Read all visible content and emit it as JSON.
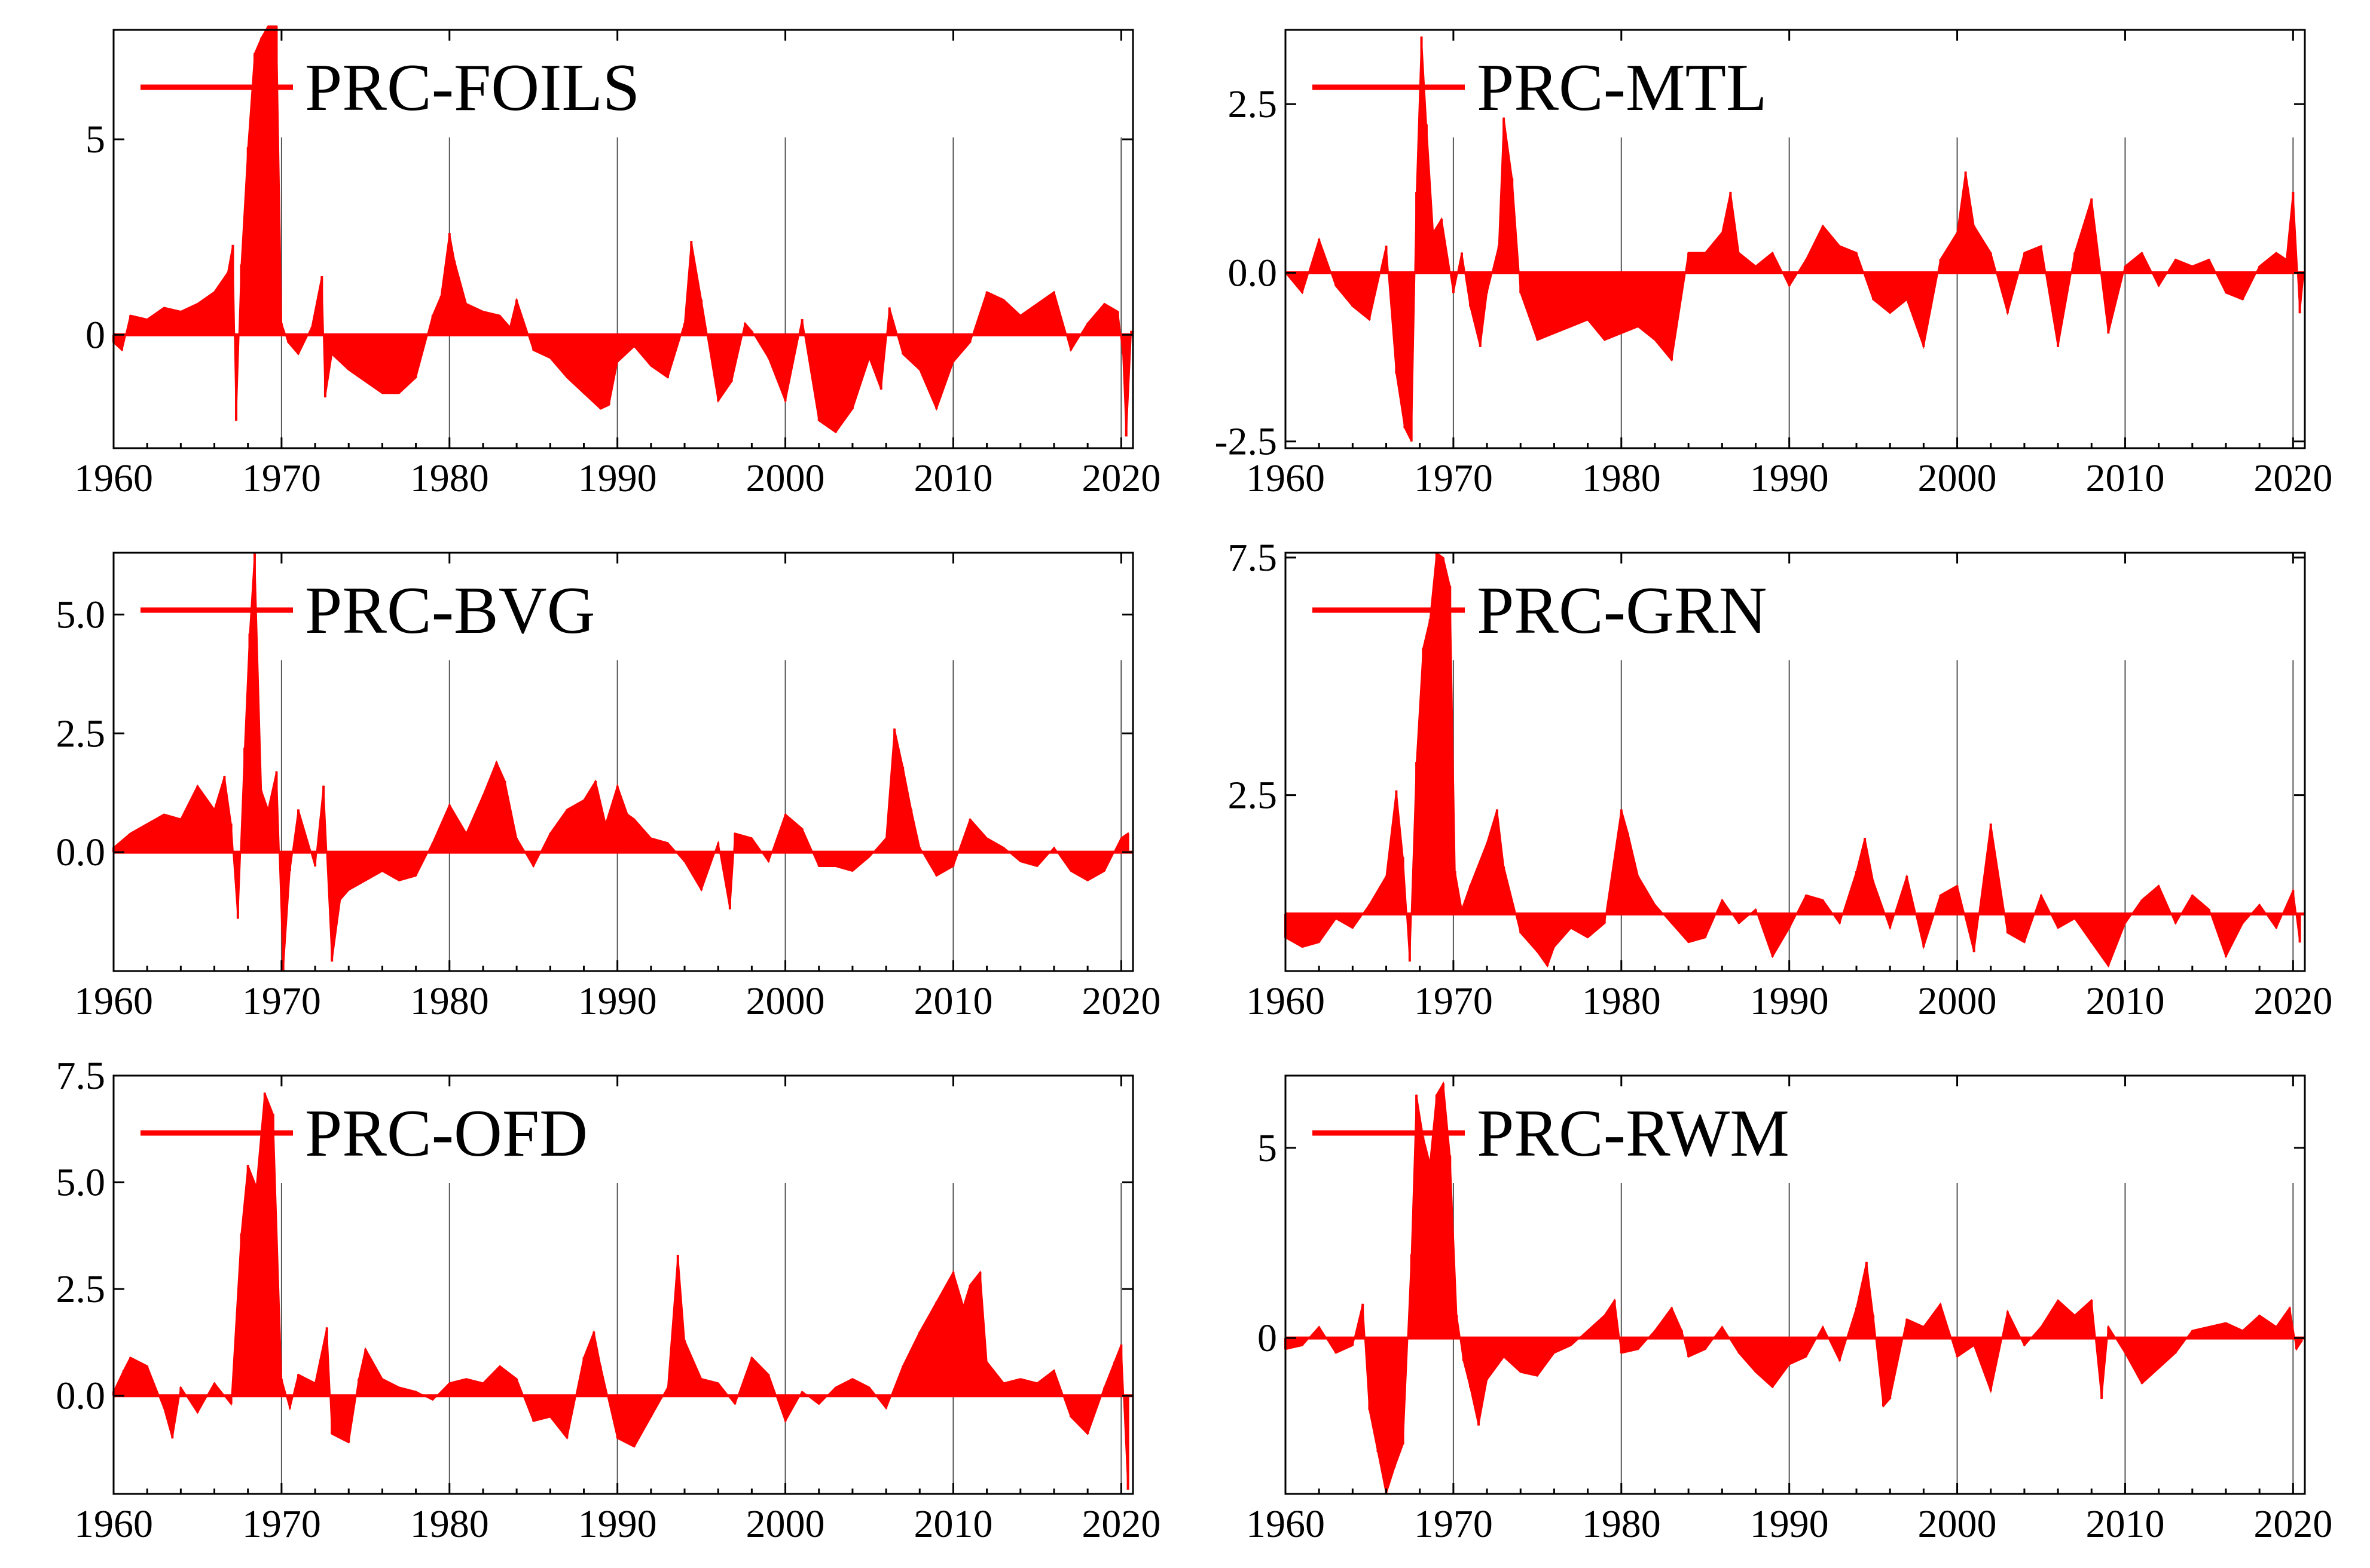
{
  "chart_data": [
    {
      "type": "area",
      "title": "PRC-FOILS",
      "legend": [
        "PRC-FOILS"
      ],
      "legend_position": "top-left",
      "xlim": [
        1960,
        2020.7
      ],
      "ylim": [
        -2.9,
        7.8
      ],
      "xticks": [
        1960,
        1970,
        1980,
        1990,
        2000,
        2010,
        2020
      ],
      "yticks": [
        {
          "v": 0,
          "label": "0"
        },
        {
          "v": 5,
          "label": "5"
        }
      ],
      "gridlines_x": [
        1970,
        1980,
        1990,
        2000,
        2010,
        2020
      ],
      "x": [
        1960,
        1960.5,
        1961,
        1962,
        1963,
        1964,
        1965,
        1966,
        1966.8,
        1967.1,
        1967.3,
        1967.6,
        1968,
        1968.4,
        1968.8,
        1969.2,
        1969.7,
        1970,
        1970.4,
        1971,
        1971.8,
        1972.4,
        1972.6,
        1973,
        1974,
        1975,
        1976,
        1977,
        1978,
        1979,
        1979.5,
        1980,
        1980.3,
        1981,
        1982,
        1983,
        1983.6,
        1984,
        1985,
        1986,
        1987,
        1988,
        1989,
        1989.5,
        1990,
        1991,
        1992,
        1993,
        1994,
        1994.4,
        1995,
        1996,
        1996.8,
        1997.6,
        1998,
        1999,
        2000,
        2001,
        2002,
        2003,
        2004,
        2005,
        2005.7,
        2006.2,
        2007,
        2008,
        2009,
        2010,
        2011,
        2012,
        2013,
        2014,
        2015,
        2016,
        2017,
        2018,
        2019,
        2019.8,
        2020.1,
        2020.3,
        2020.6
      ],
      "values": [
        -0.2,
        -0.4,
        0.5,
        0.4,
        0.7,
        0.6,
        0.8,
        1.1,
        1.6,
        2.3,
        -2.2,
        1.8,
        4.8,
        7.2,
        7.6,
        7.9,
        7.9,
        0.3,
        -0.2,
        -0.5,
        0.2,
        1.5,
        -1.6,
        -0.5,
        -0.9,
        -1.2,
        -1.5,
        -1.5,
        -1.1,
        0.5,
        1.0,
        2.6,
        1.9,
        0.8,
        0.6,
        0.5,
        0.2,
        0.9,
        -0.4,
        -0.6,
        -1.1,
        -1.5,
        -1.9,
        -1.8,
        -0.7,
        -0.3,
        -0.8,
        -1.1,
        0.3,
        2.4,
        0.9,
        -1.7,
        -1.2,
        0.3,
        0.1,
        -0.6,
        -1.7,
        0.4,
        -2.2,
        -2.5,
        -1.9,
        -0.6,
        -1.4,
        0.7,
        -0.5,
        -0.9,
        -1.9,
        -0.7,
        -0.2,
        1.1,
        0.9,
        0.5,
        0.8,
        1.1,
        -0.4,
        0.3,
        0.8,
        0.6,
        -0.5,
        -2.6,
        0.1
      ]
    },
    {
      "type": "area",
      "title": "PRC-MTL",
      "legend": [
        "PRC-MTL"
      ],
      "legend_position": "top-left",
      "xlim": [
        1960,
        2020.7
      ],
      "ylim": [
        -2.6,
        3.6
      ],
      "xticks": [
        1960,
        1970,
        1980,
        1990,
        2000,
        2010,
        2020
      ],
      "yticks": [
        {
          "v": 2.5,
          "label": "2.5"
        },
        {
          "v": 0,
          "label": "0.0"
        },
        {
          "v": -2.5,
          "label": "-2.5"
        }
      ],
      "gridlines_x": [
        1970,
        1980,
        1990,
        2000,
        2010,
        2020
      ],
      "x": [
        1960,
        1961,
        1962,
        1963,
        1964,
        1965,
        1966,
        1966.6,
        1967.1,
        1967.5,
        1967.8,
        1968.1,
        1968.4,
        1968.8,
        1969.3,
        1970,
        1970.5,
        1971,
        1971.6,
        1972,
        1972.7,
        1973,
        1973.5,
        1974,
        1975,
        1976,
        1977,
        1978,
        1979,
        1980,
        1981,
        1982,
        1983,
        1984,
        1985,
        1986,
        1986.5,
        1987,
        1988,
        1989,
        1990,
        1991,
        1992,
        1993,
        1994,
        1995,
        1996,
        1997,
        1998,
        1999,
        2000,
        2000.5,
        2001,
        2002,
        2003,
        2004,
        2005,
        2006,
        2007,
        2008,
        2009,
        2010,
        2011,
        2012,
        2013,
        2014,
        2015,
        2016,
        2017,
        2018,
        2019,
        2019.6,
        2020,
        2020.4,
        2020.6
      ],
      "values": [
        0.0,
        -0.3,
        0.5,
        -0.2,
        -0.5,
        -0.7,
        0.4,
        -1.5,
        -2.3,
        -2.5,
        1.2,
        3.5,
        2.2,
        0.6,
        0.8,
        -0.3,
        0.3,
        -0.5,
        -1.1,
        -0.3,
        0.4,
        2.3,
        1.4,
        -0.3,
        -1.0,
        -0.9,
        -0.8,
        -0.7,
        -1.0,
        -0.9,
        -0.8,
        -1.0,
        -1.3,
        0.3,
        0.3,
        0.6,
        1.2,
        0.3,
        0.1,
        0.3,
        -0.2,
        0.2,
        0.7,
        0.4,
        0.3,
        -0.4,
        -0.6,
        -0.4,
        -1.1,
        0.2,
        0.6,
        1.5,
        0.7,
        0.3,
        -0.6,
        0.3,
        0.4,
        -1.1,
        0.3,
        1.1,
        -0.9,
        0.1,
        0.3,
        -0.2,
        0.2,
        0.1,
        0.2,
        -0.3,
        -0.4,
        0.1,
        0.3,
        0.2,
        1.2,
        -0.6,
        -0.1
      ]
    },
    {
      "type": "area",
      "title": "PRC-BVG",
      "legend": [
        "PRC-BVG"
      ],
      "legend_position": "top-left",
      "xlim": [
        1960,
        2020.7
      ],
      "ylim": [
        -2.5,
        6.3
      ],
      "xticks": [
        1960,
        1970,
        1980,
        1990,
        2000,
        2010,
        2020
      ],
      "yticks": [
        {
          "v": 5,
          "label": "5.0"
        },
        {
          "v": 2.5,
          "label": "2.5"
        },
        {
          "v": 0,
          "label": "0.0"
        }
      ],
      "gridlines_x": [
        1970,
        1980,
        1990,
        2000,
        2010,
        2020
      ],
      "x": [
        1960,
        1961,
        1962,
        1963,
        1964,
        1965,
        1966,
        1966.6,
        1967,
        1967.4,
        1967.8,
        1968.1,
        1968.4,
        1968.8,
        1969.2,
        1969.7,
        1970.1,
        1970.5,
        1971,
        1972,
        1972.5,
        1973,
        1973.5,
        1974,
        1975,
        1976,
        1977,
        1978,
        1979,
        1980,
        1981,
        1982,
        1982.8,
        1983.3,
        1984,
        1985,
        1986,
        1987,
        1988,
        1988.7,
        1989.3,
        1990,
        1990.6,
        1991,
        1992,
        1993,
        1994,
        1995,
        1996,
        1996.7,
        1997,
        1998,
        1999,
        2000,
        2001,
        2002,
        2003,
        2004,
        2005,
        2006,
        2006.5,
        2007,
        2007.5,
        2008,
        2009,
        2010,
        2011,
        2012,
        2013,
        2014,
        2015,
        2016,
        2017,
        2018,
        2019,
        2020,
        2020.4
      ],
      "values": [
        0.1,
        0.4,
        0.6,
        0.8,
        0.7,
        1.4,
        0.9,
        1.6,
        0.6,
        -1.4,
        2.2,
        4.6,
        6.3,
        1.3,
        0.9,
        1.7,
        -2.5,
        -0.4,
        0.9,
        -0.3,
        1.4,
        -2.3,
        -1.0,
        -0.8,
        -0.6,
        -0.4,
        -0.6,
        -0.5,
        0.2,
        1.0,
        0.4,
        1.2,
        1.9,
        1.5,
        0.3,
        -0.3,
        0.4,
        0.9,
        1.1,
        1.5,
        0.6,
        1.4,
        0.8,
        0.7,
        0.3,
        0.2,
        -0.2,
        -0.8,
        0.2,
        -1.2,
        0.4,
        0.3,
        -0.2,
        0.8,
        0.5,
        -0.3,
        -0.3,
        -0.4,
        -0.1,
        0.3,
        2.6,
        1.8,
        0.9,
        0.1,
        -0.5,
        -0.3,
        0.7,
        0.3,
        0.1,
        -0.2,
        -0.3,
        0.1,
        -0.4,
        -0.6,
        -0.4,
        0.3,
        0.4
      ]
    },
    {
      "type": "area",
      "title": "PRC-GRN",
      "legend": [
        "PRC-GRN"
      ],
      "legend_position": "top-left",
      "xlim": [
        1960,
        2020.7
      ],
      "ylim": [
        -1.2,
        7.6
      ],
      "xticks": [
        1960,
        1970,
        1980,
        1990,
        2000,
        2010,
        2020
      ],
      "yticks": [
        {
          "v": 7.5,
          "label": "7.5"
        },
        {
          "v": 2.5,
          "label": "2.5"
        }
      ],
      "gridlines_x": [
        1970,
        1980,
        1990,
        2000,
        2010,
        2020
      ],
      "x": [
        1960,
        1961,
        1962,
        1963,
        1964,
        1965,
        1966,
        1966.6,
        1967,
        1967.4,
        1967.8,
        1968.2,
        1968.6,
        1969,
        1969.4,
        1969.8,
        1970.1,
        1970.5,
        1971,
        1972,
        1972.6,
        1973,
        1974,
        1975,
        1975.6,
        1976,
        1977,
        1978,
        1979,
        1980,
        1980.4,
        1981,
        1982,
        1983,
        1984,
        1985,
        1986,
        1987,
        1988,
        1989,
        1990,
        1991,
        1992,
        1993,
        1994,
        1994.5,
        1995,
        1996,
        1997,
        1998,
        1999,
        2000,
        2001,
        2002,
        2003,
        2004,
        2005,
        2006,
        2007,
        2008,
        2009,
        2010,
        2011,
        2012,
        2013,
        2014,
        2015,
        2016,
        2017,
        2018,
        2019,
        2020,
        2020.4
      ],
      "values": [
        -0.5,
        -0.7,
        -0.6,
        -0.1,
        -0.3,
        0.2,
        0.8,
        2.6,
        1.2,
        -1.0,
        3.2,
        5.6,
        6.2,
        7.6,
        7.5,
        6.9,
        0.9,
        0.1,
        0.6,
        1.5,
        2.2,
        1.0,
        -0.4,
        -0.8,
        -1.1,
        -0.7,
        -0.3,
        -0.5,
        -0.2,
        2.2,
        1.7,
        0.8,
        0.2,
        -0.2,
        -0.6,
        -0.5,
        0.3,
        -0.2,
        0.1,
        -0.9,
        -0.3,
        0.4,
        0.3,
        -0.2,
        0.9,
        1.6,
        0.7,
        -0.3,
        0.8,
        -0.7,
        0.4,
        0.6,
        -0.8,
        1.9,
        -0.4,
        -0.6,
        0.4,
        -0.3,
        -0.1,
        -0.6,
        -1.1,
        -0.2,
        0.3,
        0.6,
        -0.2,
        0.4,
        0.1,
        -0.9,
        -0.2,
        0.2,
        -0.3,
        0.5,
        -0.6
      ]
    },
    {
      "type": "area",
      "title": "PRC-OFD",
      "legend": [
        "PRC-OFD"
      ],
      "legend_position": "top-left",
      "xlim": [
        1960,
        2020.7
      ],
      "ylim": [
        -2.3,
        7.5
      ],
      "xticks": [
        1960,
        1970,
        1980,
        1990,
        2000,
        2010,
        2020
      ],
      "yticks": [
        {
          "v": 7.5,
          "label": "7.5"
        },
        {
          "v": 5,
          "label": "5.0"
        },
        {
          "v": 2.5,
          "label": "2.5"
        },
        {
          "v": 0,
          "label": "0.0"
        }
      ],
      "gridlines_x": [
        1970,
        1980,
        1990,
        2000,
        2010,
        2020
      ],
      "x": [
        1960,
        1960.6,
        1961,
        1962,
        1963,
        1963.5,
        1964,
        1965,
        1966,
        1967,
        1967.6,
        1968,
        1968.5,
        1969,
        1969.5,
        1970,
        1970.5,
        1971,
        1972,
        1972.7,
        1973,
        1974,
        1974.6,
        1975,
        1976,
        1977,
        1978,
        1979,
        1980,
        1981,
        1982,
        1983,
        1984,
        1985,
        1986,
        1987,
        1988,
        1988.6,
        1989,
        1990,
        1991,
        1992,
        1993,
        1993.6,
        1994,
        1995,
        1996,
        1997,
        1998,
        1999,
        2000,
        2001,
        2002,
        2003,
        2004,
        2005,
        2006,
        2007,
        2008,
        2009,
        2010,
        2010.6,
        2011,
        2011.6,
        2012,
        2013,
        2014,
        2015,
        2016,
        2017,
        2018,
        2019,
        2019.6,
        2020,
        2020.4
      ],
      "values": [
        0.1,
        0.6,
        0.9,
        0.7,
        -0.3,
        -1.0,
        0.2,
        -0.4,
        0.3,
        -0.2,
        3.8,
        5.4,
        4.9,
        7.1,
        6.6,
        0.4,
        -0.3,
        0.5,
        0.3,
        1.6,
        -0.9,
        -1.1,
        0.4,
        1.1,
        0.4,
        0.2,
        0.1,
        -0.1,
        0.3,
        0.4,
        0.3,
        0.7,
        0.4,
        -0.6,
        -0.5,
        -1.0,
        0.9,
        1.5,
        0.7,
        -1.0,
        -1.2,
        -0.5,
        0.2,
        3.3,
        1.3,
        0.4,
        0.3,
        -0.2,
        0.9,
        0.5,
        -0.6,
        0.1,
        -0.2,
        0.2,
        0.4,
        0.2,
        -0.3,
        0.7,
        1.5,
        2.2,
        2.9,
        2.1,
        2.6,
        2.9,
        0.8,
        0.3,
        0.4,
        0.3,
        0.6,
        -0.5,
        -0.9,
        0.2,
        0.8,
        1.2,
        -2.2
      ]
    },
    {
      "type": "area",
      "title": "PRC-RWM",
      "legend": [
        "PRC-RWM"
      ],
      "legend_position": "top-left",
      "xlim": [
        1960,
        2020.7
      ],
      "ylim": [
        -4.1,
        6.9
      ],
      "xticks": [
        1960,
        1970,
        1980,
        1990,
        2000,
        2010,
        2020
      ],
      "yticks": [
        {
          "v": 5,
          "label": "5"
        },
        {
          "v": 0,
          "label": "0"
        }
      ],
      "gridlines_x": [
        1970,
        1980,
        1990,
        2000,
        2010,
        2020
      ],
      "x": [
        1960,
        1961,
        1962,
        1963,
        1964,
        1964.6,
        1965,
        1965.5,
        1966,
        1966.5,
        1967,
        1967.5,
        1967.8,
        1968.2,
        1968.6,
        1969,
        1969.4,
        1969.8,
        1970.2,
        1970.6,
        1971,
        1971.5,
        1972,
        1973,
        1974,
        1975,
        1976,
        1977,
        1978,
        1979,
        1979.6,
        1980,
        1981,
        1982,
        1983,
        1983.6,
        1984,
        1985,
        1986,
        1987,
        1988,
        1989,
        1990,
        1991,
        1992,
        1993,
        1994,
        1994.6,
        1995,
        1995.6,
        1996,
        1997,
        1998,
        1999,
        2000,
        2001,
        2002,
        2003,
        2004,
        2005,
        2006,
        2007,
        2008,
        2008.6,
        2009,
        2010,
        2011,
        2012,
        2013,
        2014,
        2015,
        2016,
        2017,
        2018,
        2019,
        2019.8,
        2020.2,
        2020.5
      ],
      "values": [
        -0.3,
        -0.2,
        0.3,
        -0.4,
        -0.2,
        0.9,
        -1.9,
        -3.0,
        -4.1,
        -3.4,
        -2.8,
        2.2,
        6.4,
        5.3,
        4.6,
        6.4,
        6.7,
        4.8,
        0.6,
        -0.6,
        -1.3,
        -2.3,
        -1.1,
        -0.5,
        -0.9,
        -1.0,
        -0.4,
        -0.2,
        0.2,
        0.6,
        1.0,
        -0.4,
        -0.3,
        0.2,
        0.8,
        0.2,
        -0.5,
        -0.3,
        0.3,
        -0.4,
        -0.9,
        -1.3,
        -0.7,
        -0.5,
        0.3,
        -0.6,
        0.8,
        2.0,
        0.6,
        -1.8,
        -1.6,
        0.5,
        0.3,
        0.9,
        -0.5,
        -0.2,
        -1.4,
        0.7,
        -0.2,
        0.3,
        1.0,
        0.6,
        1.0,
        -1.6,
        0.3,
        -0.4,
        -1.2,
        -0.8,
        -0.4,
        0.2,
        0.3,
        0.4,
        0.2,
        0.6,
        0.3,
        0.8,
        -0.3,
        -0.1
      ]
    }
  ]
}
